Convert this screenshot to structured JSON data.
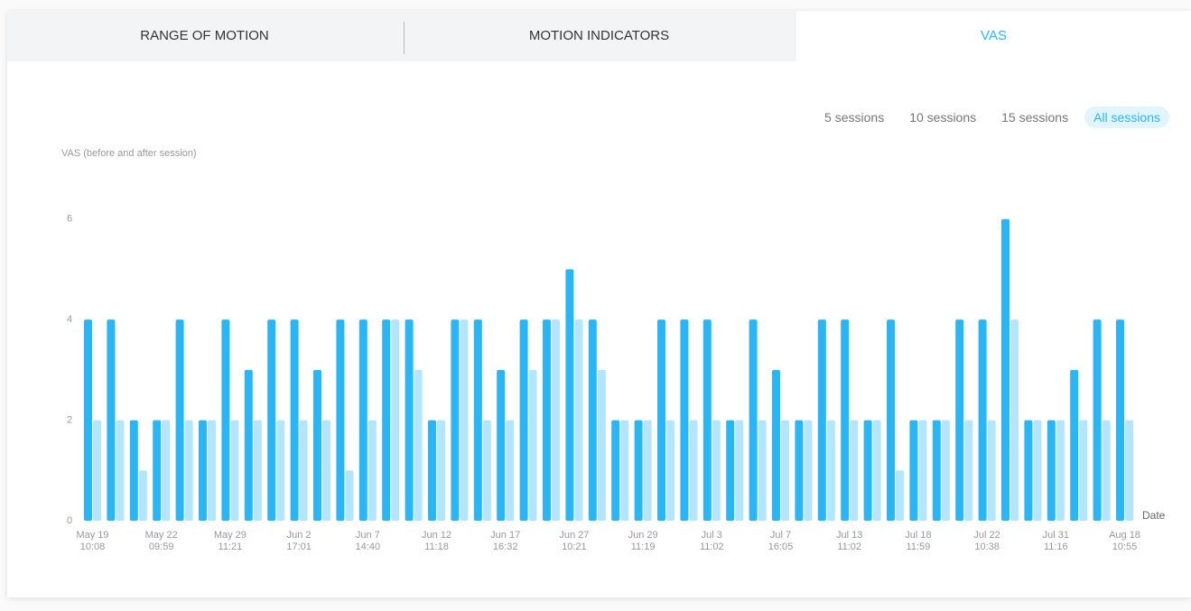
{
  "tabs": [
    "RANGE OF MOTION",
    "MOTION INDICATORS",
    "VAS"
  ],
  "active_tab": 2,
  "session_filters": [
    "5 sessions",
    "10 sessions",
    "15 sessions",
    "All sessions"
  ],
  "active_filter": 3,
  "chart_data": {
    "type": "bar",
    "y_label": "VAS (before and after session)",
    "x_label": "Date",
    "categories": [
      "May 19\n10:08",
      null,
      null,
      "May 22\n09:59",
      null,
      null,
      "May 29\n11:21",
      null,
      null,
      "Jun 2\n17:01",
      null,
      null,
      "Jun 7\n14:40",
      null,
      null,
      "Jun 12\n11:18",
      null,
      null,
      "Jun 17\n16:32",
      null,
      null,
      "Jun 27\n10:21",
      null,
      null,
      "Jun 29\n11:19",
      null,
      null,
      "Jul 3\n11:02",
      null,
      null,
      "Jul 7\n16:05",
      null,
      null,
      "Jul 13\n11:02",
      null,
      null,
      "Jul 18\n11:59",
      null,
      null,
      "Jul 22\n10:38",
      null,
      null,
      "Jul 31\n11:16",
      null,
      null,
      "Aug 18\n10:55"
    ],
    "series": [
      {
        "color": "#29b6f6",
        "values": [
          4,
          4,
          2,
          2,
          4,
          2,
          4,
          3,
          4,
          4,
          3,
          4,
          4,
          4,
          4,
          2,
          4,
          4,
          3,
          4,
          4,
          5,
          4,
          2,
          2,
          4,
          4,
          4,
          2,
          4,
          3,
          2,
          4,
          4,
          2,
          4,
          2,
          2,
          4,
          4,
          6,
          2,
          2,
          3,
          4,
          4
        ]
      },
      {
        "color": "#b3e5fc",
        "values": [
          2,
          2,
          1,
          2,
          2,
          2,
          2,
          2,
          2,
          2,
          2,
          1,
          2,
          4,
          3,
          2,
          4,
          2,
          2,
          3,
          4,
          4,
          3,
          2,
          2,
          2,
          2,
          2,
          2,
          2,
          2,
          2,
          2,
          2,
          2,
          1,
          2,
          2,
          2,
          2,
          4,
          2,
          2,
          2,
          2,
          2
        ]
      }
    ],
    "ylim": [
      0,
      7
    ],
    "yticks": [
      0,
      2,
      4,
      6
    ],
    "grid": false
  }
}
